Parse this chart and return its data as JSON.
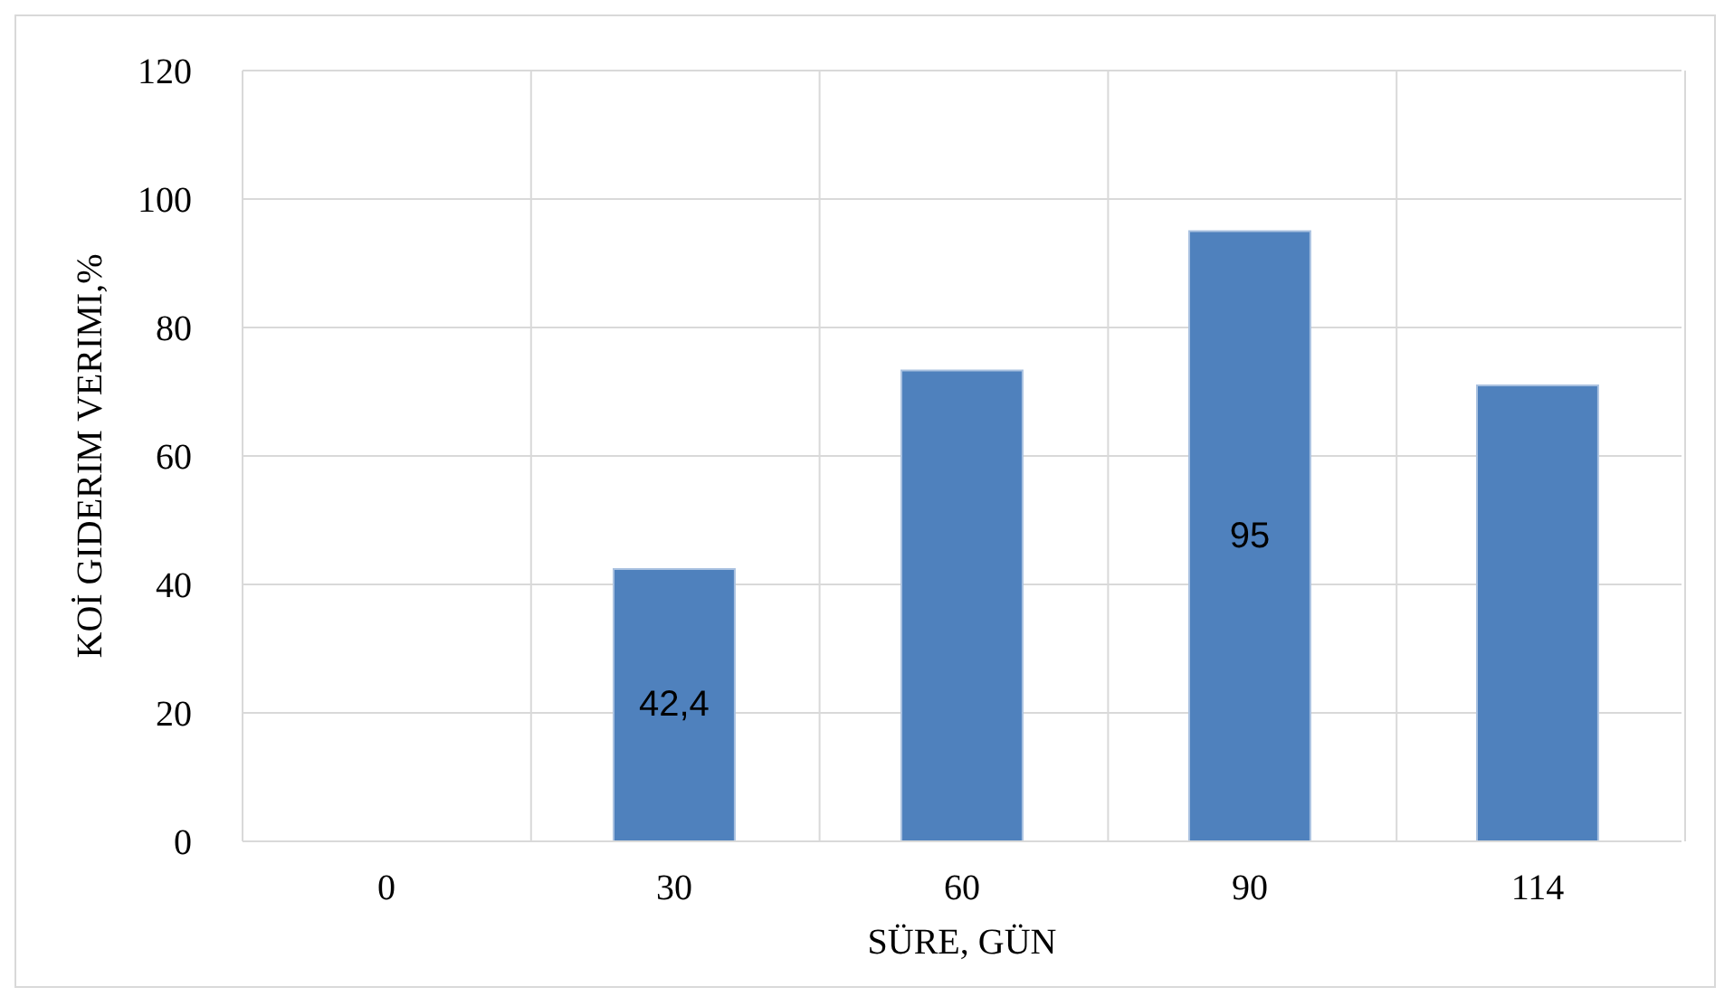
{
  "chart_data": {
    "type": "bar",
    "xlabel": "SÜRE, GÜN",
    "ylabel": "KOİ GIDERIM VERIMI,%",
    "categories": [
      "0",
      "30",
      "60",
      "90",
      "114"
    ],
    "values": [
      0,
      42.4,
      73.3,
      95,
      71
    ],
    "value_labels": [
      null,
      "42,4",
      null,
      "95",
      null
    ],
    "color": "#4f81bd",
    "ylim": [
      0,
      120
    ],
    "yticks": [
      0,
      20,
      40,
      60,
      80,
      100,
      120
    ],
    "grid": true
  }
}
